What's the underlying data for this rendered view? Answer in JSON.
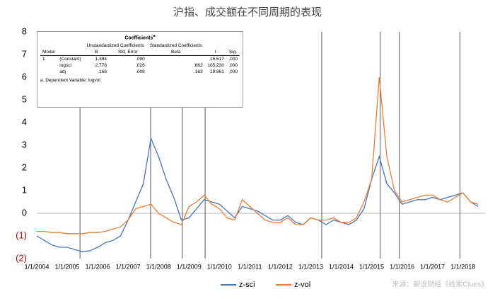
{
  "chart_data": {
    "type": "line",
    "title": "沪指、成交额在不同周期的表现",
    "source": "来源：新浪财经《线索Clues》",
    "x": [
      2004,
      2004.25,
      2004.5,
      2004.75,
      2005,
      2005.25,
      2005.5,
      2005.75,
      2006,
      2006.25,
      2006.5,
      2006.75,
      2007,
      2007.25,
      2007.5,
      2007.75,
      2008,
      2008.25,
      2008.5,
      2008.75,
      2009,
      2009.25,
      2009.5,
      2009.75,
      2010,
      2010.25,
      2010.5,
      2010.75,
      2011,
      2011.25,
      2011.5,
      2011.75,
      2012,
      2012.25,
      2012.5,
      2012.75,
      2013,
      2013.25,
      2013.5,
      2013.75,
      2014,
      2014.25,
      2014.5,
      2014.75,
      2015,
      2015.25,
      2015.5,
      2015.75,
      2016,
      2016.25,
      2016.5,
      2016.75,
      2017,
      2017.25,
      2017.5,
      2017.75,
      2018,
      2018.25,
      2018.5
    ],
    "series": [
      {
        "name": "z-sci",
        "color": "#4472c4",
        "values": [
          -1.0,
          -1.2,
          -1.4,
          -1.5,
          -1.5,
          -1.6,
          -1.7,
          -1.65,
          -1.5,
          -1.3,
          -1.2,
          -1.0,
          -0.3,
          0.5,
          1.3,
          3.3,
          2.5,
          1.5,
          0.7,
          -0.3,
          -0.2,
          0.2,
          0.6,
          0.5,
          0.4,
          0.1,
          -0.2,
          0.3,
          0.2,
          0.1,
          -0.1,
          -0.3,
          -0.3,
          -0.1,
          -0.4,
          -0.5,
          -0.2,
          -0.3,
          -0.5,
          -0.3,
          -0.4,
          -0.5,
          -0.3,
          0.2,
          1.5,
          2.5,
          1.3,
          0.9,
          0.4,
          0.5,
          0.6,
          0.6,
          0.7,
          0.6,
          0.7,
          0.8,
          0.9,
          0.5,
          0.3
        ]
      },
      {
        "name": "z-vol",
        "color": "#ed7d31",
        "values": [
          -0.8,
          -0.8,
          -0.85,
          -0.85,
          -0.9,
          -0.9,
          -0.9,
          -0.85,
          -0.85,
          -0.8,
          -0.7,
          -0.6,
          -0.3,
          0.2,
          0.3,
          0.4,
          0.0,
          -0.2,
          -0.4,
          -0.5,
          0.3,
          0.5,
          0.8,
          0.4,
          0.2,
          -0.2,
          -0.3,
          0.6,
          0.3,
          0.0,
          -0.3,
          -0.4,
          -0.4,
          -0.2,
          -0.5,
          -0.5,
          -0.2,
          -0.3,
          -0.3,
          -0.2,
          -0.4,
          -0.4,
          -0.2,
          0.5,
          1.5,
          6.0,
          2.5,
          1.0,
          0.5,
          0.6,
          0.7,
          0.8,
          0.8,
          0.6,
          0.5,
          0.7,
          0.9,
          0.5,
          0.4
        ]
      }
    ],
    "vlines": [
      2005.42,
      2007.74,
      2008.78,
      2009.53,
      2013.36,
      2015.28,
      2015.91,
      2017.9
    ],
    "xlim": [
      2004,
      2018.75
    ],
    "xticks": [
      {
        "value": 2004,
        "label": "1/1/2004"
      },
      {
        "value": 2005,
        "label": "1/1/2005"
      },
      {
        "value": 2006,
        "label": "1/1/2006"
      },
      {
        "value": 2007,
        "label": "1/1/2007"
      },
      {
        "value": 2008,
        "label": "1/1/2008"
      },
      {
        "value": 2009,
        "label": "1/1/2009"
      },
      {
        "value": 2010,
        "label": "1/1/2010"
      },
      {
        "value": 2011,
        "label": "1/1/2011"
      },
      {
        "value": 2012,
        "label": "1/1/2012"
      },
      {
        "value": 2013,
        "label": "1/1/2013"
      },
      {
        "value": 2014,
        "label": "1/1/2014"
      },
      {
        "value": 2015,
        "label": "1/1/2015"
      },
      {
        "value": 2016,
        "label": "1/1/2016"
      },
      {
        "value": 2017,
        "label": "1/1/2017"
      },
      {
        "value": 2018,
        "label": "1/1/2018"
      }
    ],
    "ylim": [
      -2,
      8
    ],
    "yticks": [
      8,
      7,
      6,
      5,
      4,
      3,
      2,
      1,
      0,
      {
        "value": -1,
        "label": "(1)"
      },
      {
        "value": -2,
        "label": "(2)"
      }
    ],
    "negative_tick_color": "#c00000",
    "legend": "bottom"
  },
  "table": {
    "title": "Coefficients",
    "note_mark": "a",
    "headers": {
      "model": "Model",
      "unstd": "Unstandardized Coefficients",
      "b": "B",
      "se": "Std. Error",
      "std": "Standardized Coefficients",
      "beta": "Beta",
      "t": "t",
      "sig": "Sig."
    },
    "model_no": "1",
    "rows": [
      {
        "name": "(Constant)",
        "b": "1.394",
        "se": ".090",
        "t": "15.517",
        "sig": ".000"
      },
      {
        "name": "logsci",
        "b": "2.778",
        "se": ".026",
        "beta": ".862",
        "t": "105.230",
        "sig": ".000"
      },
      {
        "name": "adj",
        "b": ".168",
        "se": ".008",
        "beta": ".163",
        "t": "19.861",
        "sig": ".000"
      }
    ],
    "footnote": "a. Dependent Variable: logvol"
  }
}
